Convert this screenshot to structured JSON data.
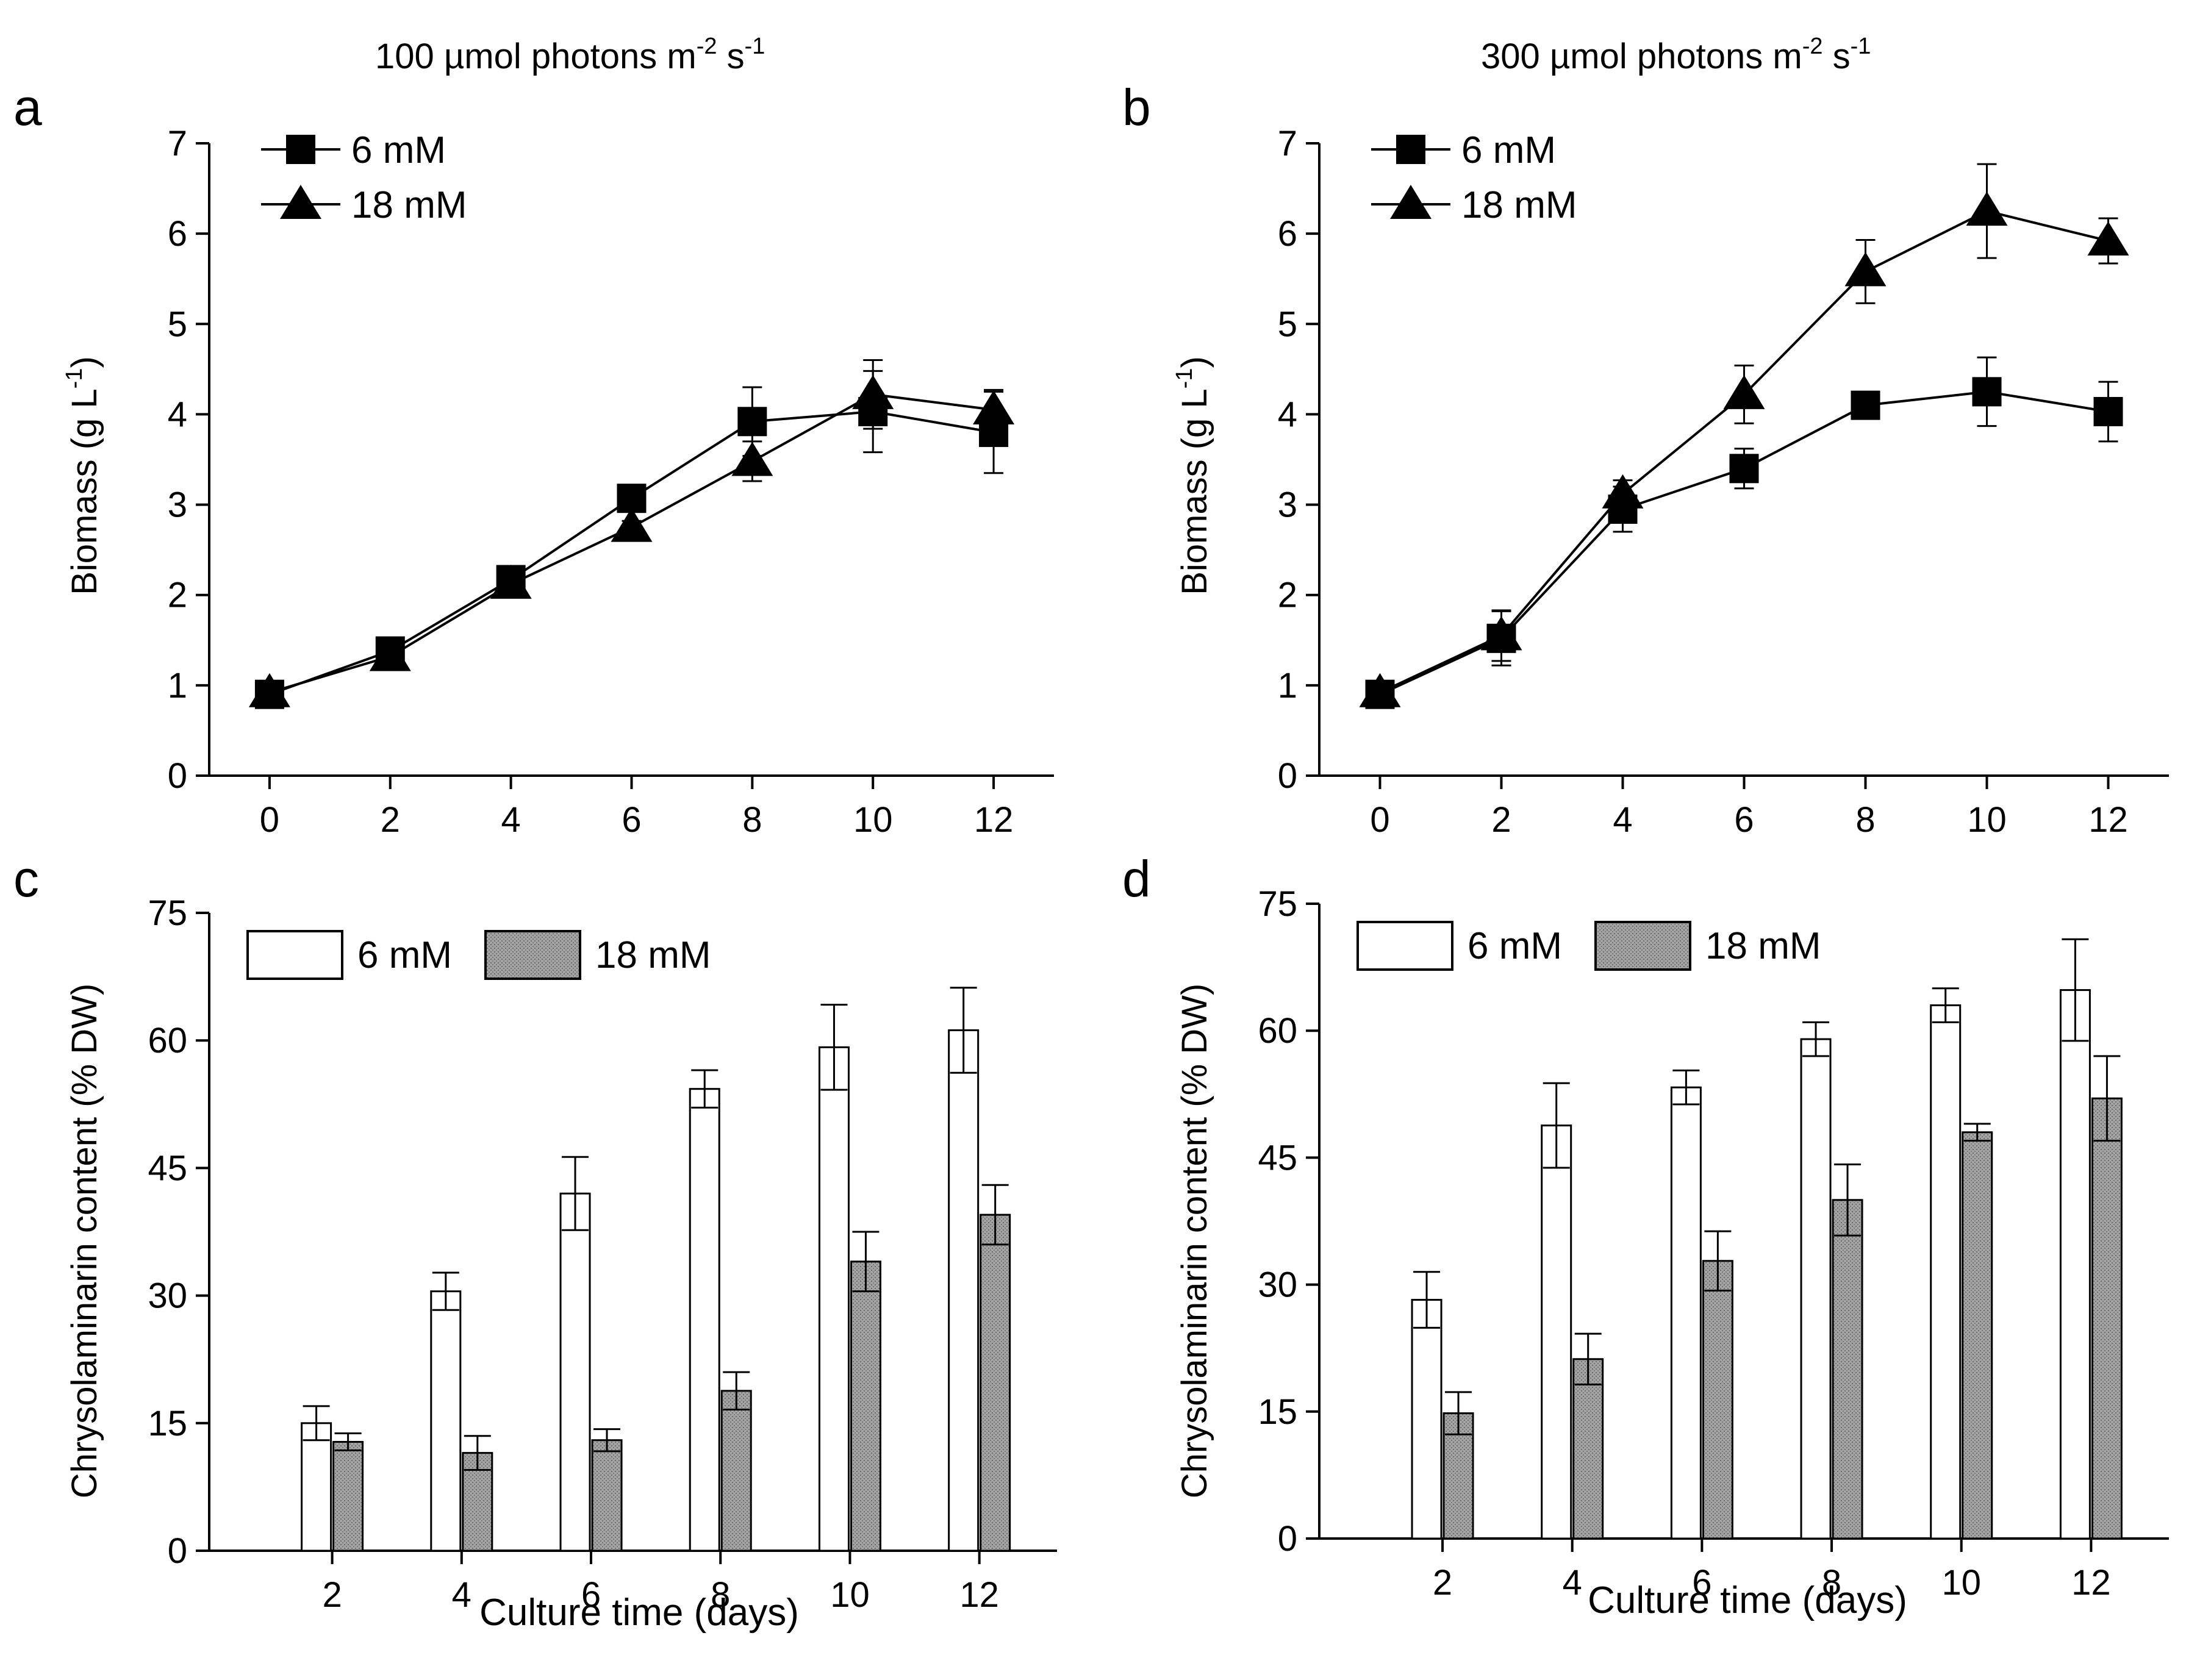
{
  "colors": {
    "axis": "#000000",
    "bar_6mM": "#ffffff",
    "bar_18mM": "#9a9a9a",
    "line": "#000000"
  },
  "chart_data": [
    {
      "panel": "a",
      "type": "line",
      "title": "100 µmol photons m⁻² s⁻¹",
      "xlabel": "",
      "ylabel": "Biomass (g L⁻¹)",
      "xlim": [
        -1,
        13
      ],
      "ylim": [
        0,
        7
      ],
      "xticks": [
        0,
        2,
        4,
        6,
        8,
        10,
        12
      ],
      "yticks": [
        0,
        1,
        2,
        3,
        4,
        5,
        6,
        7
      ],
      "legend": "top-left",
      "x": [
        0,
        2,
        4,
        6,
        8,
        10,
        12
      ],
      "series": [
        {
          "name": "6 mM",
          "marker": "square",
          "values": [
            0.9,
            1.38,
            2.17,
            3.07,
            3.92,
            4.03,
            3.8
          ],
          "errors": [
            0.05,
            0.06,
            0.06,
            0.08,
            0.38,
            0.45,
            0.45
          ]
        },
        {
          "name": "18 mM",
          "marker": "triangle",
          "values": [
            0.92,
            1.32,
            2.12,
            2.75,
            3.48,
            4.22,
            4.05
          ],
          "errors": [
            0.04,
            0.05,
            0.06,
            0.07,
            0.22,
            0.38,
            0.22
          ]
        }
      ]
    },
    {
      "panel": "b",
      "type": "line",
      "title": "300 µmol photons m⁻² s⁻¹",
      "xlabel": "",
      "ylabel": "Biomass (g L⁻¹)",
      "xlim": [
        -1,
        13
      ],
      "ylim": [
        0,
        7
      ],
      "xticks": [
        0,
        2,
        4,
        6,
        8,
        10,
        12
      ],
      "yticks": [
        0,
        1,
        2,
        3,
        4,
        5,
        6,
        7
      ],
      "legend": "top-left",
      "x": [
        0,
        2,
        4,
        6,
        8,
        10,
        12
      ],
      "series": [
        {
          "name": "6 mM",
          "marker": "square",
          "values": [
            0.9,
            1.52,
            2.95,
            3.4,
            4.1,
            4.25,
            4.03
          ],
          "errors": [
            0.05,
            0.3,
            0.25,
            0.22,
            0.1,
            0.38,
            0.33
          ]
        },
        {
          "name": "18 mM",
          "marker": "triangle",
          "values": [
            0.92,
            1.55,
            3.12,
            4.22,
            5.58,
            6.25,
            5.92
          ],
          "errors": [
            0.05,
            0.28,
            0.15,
            0.32,
            0.35,
            0.52,
            0.25
          ]
        }
      ]
    },
    {
      "panel": "c",
      "type": "bar",
      "xlabel": "Culture time (days)",
      "ylabel": "Chrysolaminarin content (% DW)",
      "ylim": [
        0,
        75
      ],
      "yticks": [
        0,
        15,
        30,
        45,
        60,
        75
      ],
      "legend": "top-left",
      "categories": [
        "2",
        "4",
        "6",
        "8",
        "10",
        "12"
      ],
      "series": [
        {
          "name": "6 mM",
          "values": [
            15.0,
            30.5,
            42.0,
            54.3,
            59.2,
            61.2
          ],
          "errors": [
            2.0,
            2.2,
            4.3,
            2.2,
            5.0,
            5.0
          ]
        },
        {
          "name": "18 mM",
          "values": [
            12.8,
            11.5,
            13.0,
            18.8,
            34.0,
            39.5
          ],
          "errors": [
            1.0,
            2.0,
            1.3,
            2.2,
            3.5,
            3.5
          ]
        }
      ]
    },
    {
      "panel": "d",
      "type": "bar",
      "xlabel": "Culture time (days)",
      "ylabel": "Chrysolaminarin content (% DW)",
      "ylim": [
        0,
        75
      ],
      "yticks": [
        0,
        15,
        30,
        45,
        60,
        75
      ],
      "legend": "top-left",
      "categories": [
        "2",
        "4",
        "6",
        "8",
        "10",
        "12"
      ],
      "series": [
        {
          "name": "6 mM",
          "values": [
            28.2,
            48.8,
            53.3,
            59.0,
            63.0,
            64.8
          ],
          "errors": [
            3.3,
            5.0,
            2.0,
            2.0,
            2.0,
            6.0
          ]
        },
        {
          "name": "18 mM",
          "values": [
            14.8,
            21.2,
            32.8,
            40.0,
            48.0,
            52.0
          ],
          "errors": [
            2.5,
            3.0,
            3.5,
            4.2,
            1.0,
            5.0
          ]
        }
      ]
    }
  ]
}
